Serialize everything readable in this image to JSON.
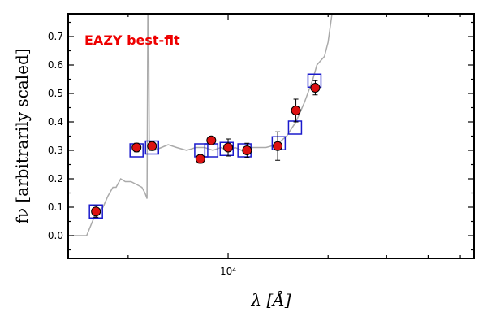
{
  "chart_data": {
    "type": "scatter",
    "title": "",
    "xlabel": "λ [Å]",
    "ylabel": "fν [arbitrarily scaled]",
    "x_scale": "log",
    "xlim": [
      3300,
      55000
    ],
    "ylim": [
      -0.08,
      0.78
    ],
    "y_ticks": [
      0.0,
      0.1,
      0.2,
      0.3,
      0.4,
      0.5,
      0.6,
      0.7
    ],
    "y_tick_labels": [
      "0.0",
      "0.1",
      "0.2",
      "0.3",
      "0.4",
      "0.5",
      "0.6",
      "0.7"
    ],
    "x_ticks": [
      10000
    ],
    "x_tick_labels": [
      "10⁴"
    ],
    "x_minor_ticks": [
      5000,
      20000,
      30000,
      40000,
      50000
    ],
    "grid": false,
    "annotation": {
      "text": "EAZY best-fit",
      "color": "#ee0000"
    },
    "colors": {
      "model_line": "#aaaaaa",
      "model_box": "#1a1acc",
      "observed_fill": "#dd1111",
      "observed_edge": "#000000"
    },
    "series": [
      {
        "type": "line",
        "points": [
          [
            3400,
            0.0
          ],
          [
            3750,
            0.0
          ],
          [
            4000,
            0.08
          ],
          [
            4200,
            0.1
          ],
          [
            4350,
            0.14
          ],
          [
            4500,
            0.17
          ],
          [
            4600,
            0.17
          ],
          [
            4750,
            0.2
          ],
          [
            4900,
            0.19
          ],
          [
            5100,
            0.19
          ],
          [
            5300,
            0.18
          ],
          [
            5500,
            0.17
          ],
          [
            5620,
            0.15
          ],
          [
            5700,
            0.13
          ],
          [
            5730,
            0.79
          ],
          [
            5760,
            0.79
          ],
          [
            5790,
            0.3
          ],
          [
            6000,
            0.3
          ],
          [
            6300,
            0.31
          ],
          [
            6600,
            0.32
          ],
          [
            7000,
            0.31
          ],
          [
            7500,
            0.3
          ],
          [
            8000,
            0.31
          ],
          [
            8500,
            0.31
          ],
          [
            9000,
            0.3
          ],
          [
            9500,
            0.31
          ],
          [
            10000,
            0.3
          ],
          [
            10500,
            0.31
          ],
          [
            11000,
            0.3
          ],
          [
            11500,
            0.31
          ],
          [
            12000,
            0.31
          ],
          [
            13000,
            0.31
          ],
          [
            14000,
            0.32
          ],
          [
            15000,
            0.35
          ],
          [
            16000,
            0.4
          ],
          [
            17000,
            0.47
          ],
          [
            18000,
            0.55
          ],
          [
            18500,
            0.6
          ],
          [
            19500,
            0.63
          ],
          [
            20000,
            0.68
          ],
          [
            20600,
            0.79
          ]
        ]
      },
      {
        "type": "model",
        "x": [
          4000,
          5300,
          5900,
          8300,
          8900,
          9900,
          11200,
          14200,
          15900,
          18200
        ],
        "y": [
          0.085,
          0.3,
          0.31,
          0.3,
          0.3,
          0.305,
          0.3,
          0.325,
          0.38,
          0.545
        ]
      },
      {
        "type": "observed",
        "x": [
          4000,
          5300,
          5900,
          8250,
          8900,
          10000,
          11400,
          14100,
          16000,
          18300
        ],
        "y": [
          0.085,
          0.31,
          0.315,
          0.27,
          0.335,
          0.31,
          0.3,
          0.315,
          0.44,
          0.52
        ],
        "err": [
          0.02,
          0.015,
          0.015,
          0.015,
          0.015,
          0.03,
          0.025,
          0.05,
          0.04,
          0.025
        ]
      }
    ]
  }
}
